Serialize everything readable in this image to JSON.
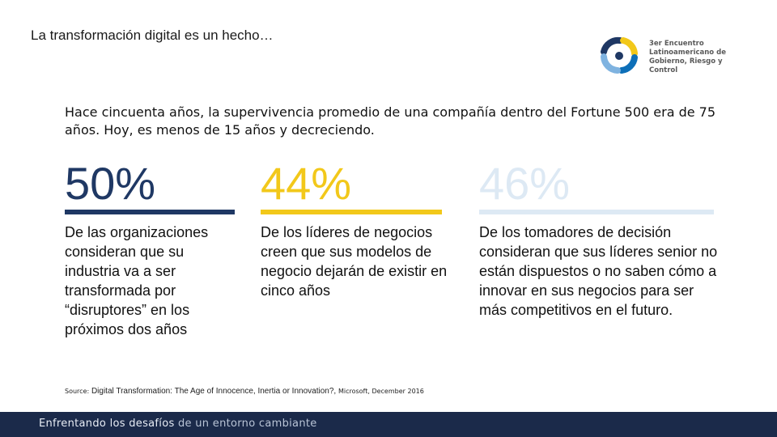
{
  "slide": {
    "title": "La transformación digital es un hecho…",
    "logo": {
      "line1": "3er Encuentro",
      "line2": "Latinoamericano de",
      "line3": "Gobierno, Riesgo y Control",
      "colors": [
        "#1f3864",
        "#f2c81a",
        "#7fb3e0",
        "#0d6fb8"
      ]
    },
    "intro": "Hace cincuenta años, la supervivencia promedio de una compañía dentro del Fortune 500 era de 75 años. Hoy, es menos de 15 años y decreciendo.",
    "stats": [
      {
        "value": "50%",
        "description": "De las organizaciones consideran que su industria va a ser transformada por “disruptores” en los próximos dos años",
        "color": "#1f3864"
      },
      {
        "value": "44%",
        "description": "De los líderes de negocios creen que sus modelos de negocio dejarán de existir en cinco años",
        "color": "#f2c81a"
      },
      {
        "value": "46%",
        "description": "De los tomadores de decisión consideran que sus líderes senior no están dispuestos o no saben cómo a innovar en sus negocios para ser más competitivos en el futuro.",
        "color": "#dde9f4"
      }
    ],
    "source": {
      "label": "Source:",
      "text": "Digital Transformation: The Age of Innocence, Inertia or Innovation?,",
      "tail": "Microsoft, December 2016"
    },
    "footer": {
      "bold": "Enfrentando los desafíos",
      "light": "de un entorno cambiante"
    }
  }
}
